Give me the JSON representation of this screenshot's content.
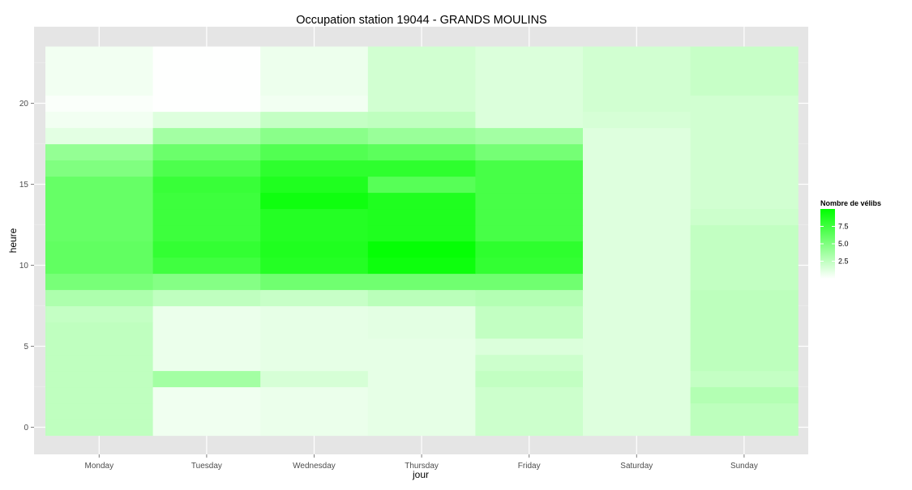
{
  "chart_data": {
    "type": "heatmap",
    "title": "Occupation station 19044 - GRANDS MOULINS",
    "xlabel": "jour",
    "ylabel": "heure",
    "x_categories": [
      "Monday",
      "Tuesday",
      "Wednesday",
      "Thursday",
      "Friday",
      "Saturday",
      "Sunday"
    ],
    "y_hours": [
      0,
      1,
      2,
      3,
      4,
      5,
      6,
      7,
      8,
      9,
      10,
      11,
      12,
      13,
      14,
      15,
      16,
      17,
      18,
      19,
      20,
      21,
      22,
      23
    ],
    "y_ticks": [
      0,
      5,
      10,
      15,
      20
    ],
    "ylim": [
      -0.5,
      23.5
    ],
    "values": [
      [
        2.5,
        0.6,
        0.8,
        1.0,
        2.0,
        1.3,
        2.6
      ],
      [
        2.5,
        0.6,
        0.8,
        1.0,
        2.0,
        1.3,
        2.6
      ],
      [
        2.5,
        0.6,
        0.8,
        1.0,
        2.0,
        1.3,
        3.0
      ],
      [
        2.5,
        3.6,
        1.6,
        1.0,
        2.4,
        1.3,
        2.3
      ],
      [
        2.5,
        0.8,
        1.0,
        1.0,
        2.0,
        1.3,
        2.6
      ],
      [
        2.5,
        0.8,
        1.0,
        1.0,
        1.4,
        1.3,
        2.6
      ],
      [
        2.5,
        0.8,
        1.0,
        1.1,
        2.4,
        1.3,
        2.6
      ],
      [
        2.3,
        0.8,
        1.0,
        1.1,
        2.4,
        1.3,
        2.6
      ],
      [
        3.2,
        2.5,
        2.2,
        2.7,
        3.0,
        1.3,
        2.6
      ],
      [
        5.3,
        4.8,
        5.6,
        5.6,
        5.6,
        1.3,
        2.4
      ],
      [
        6.2,
        7.5,
        8.6,
        9.5,
        8.0,
        1.3,
        2.4
      ],
      [
        6.2,
        8.0,
        8.8,
        9.8,
        8.2,
        1.3,
        2.4
      ],
      [
        6.0,
        7.6,
        8.6,
        8.8,
        7.2,
        1.3,
        2.4
      ],
      [
        6.0,
        7.6,
        8.6,
        8.8,
        7.2,
        1.3,
        2.0
      ],
      [
        6.0,
        7.6,
        9.4,
        8.8,
        7.2,
        1.3,
        1.8
      ],
      [
        6.0,
        7.8,
        8.8,
        6.6,
        7.2,
        1.3,
        1.8
      ],
      [
        5.0,
        7.0,
        8.2,
        8.2,
        7.2,
        1.3,
        1.8
      ],
      [
        4.2,
        5.8,
        6.8,
        6.4,
        5.4,
        1.3,
        1.8
      ],
      [
        1.1,
        3.6,
        4.6,
        4.0,
        3.6,
        1.3,
        1.8
      ],
      [
        0.5,
        1.3,
        2.3,
        2.5,
        1.4,
        1.6,
        1.8
      ],
      [
        0.2,
        0.05,
        0.5,
        1.8,
        1.4,
        1.8,
        1.8
      ],
      [
        0.5,
        0.05,
        0.7,
        1.8,
        1.4,
        1.8,
        2.2
      ],
      [
        0.5,
        0.05,
        0.7,
        1.8,
        1.4,
        1.8,
        2.2
      ],
      [
        0.5,
        0.05,
        0.7,
        1.8,
        1.4,
        1.8,
        2.2
      ]
    ],
    "value_range": [
      0,
      10
    ],
    "color_low": "#ffffff",
    "color_high": "#00ff00",
    "panel_background": "#e5e5e5",
    "grid": "on",
    "legend": {
      "title": "Nombre de vélibs",
      "breaks": [
        2.5,
        5.0,
        7.5
      ],
      "labels": [
        "2.5",
        "5.0",
        "7.5"
      ],
      "placement": "right"
    }
  }
}
